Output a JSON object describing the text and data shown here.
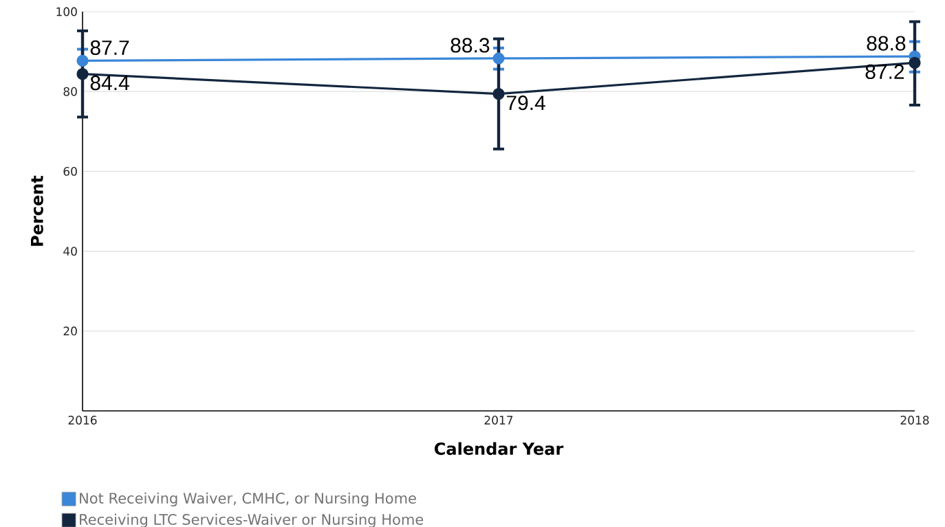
{
  "chart_data": {
    "type": "line",
    "xlabel": "Calendar Year",
    "ylabel": "Percent",
    "categories": [
      "2016",
      "2017",
      "2018"
    ],
    "series": [
      {
        "name": "Not Receiving Waiver, CMHC, or Nursing Home",
        "color": "#3a86d8",
        "values": [
          87.7,
          88.3,
          88.8
        ],
        "errors": [
          [
            87.7,
            90.6
          ],
          [
            85.6,
            90.9
          ],
          [
            84.9,
            92.5
          ]
        ]
      },
      {
        "name": "Receiving LTC Services-Waiver or Nursing Home",
        "color": "#13263f",
        "values": [
          84.4,
          79.4,
          87.2
        ],
        "errors": [
          [
            73.6,
            95.2
          ],
          [
            65.6,
            93.2
          ],
          [
            76.6,
            97.5
          ]
        ]
      }
    ],
    "ylim": [
      0,
      100
    ],
    "yticks": [
      20,
      40,
      60,
      80,
      100
    ],
    "grid": "y",
    "legend": "bottom",
    "marker": "circle",
    "data_labels": true
  }
}
